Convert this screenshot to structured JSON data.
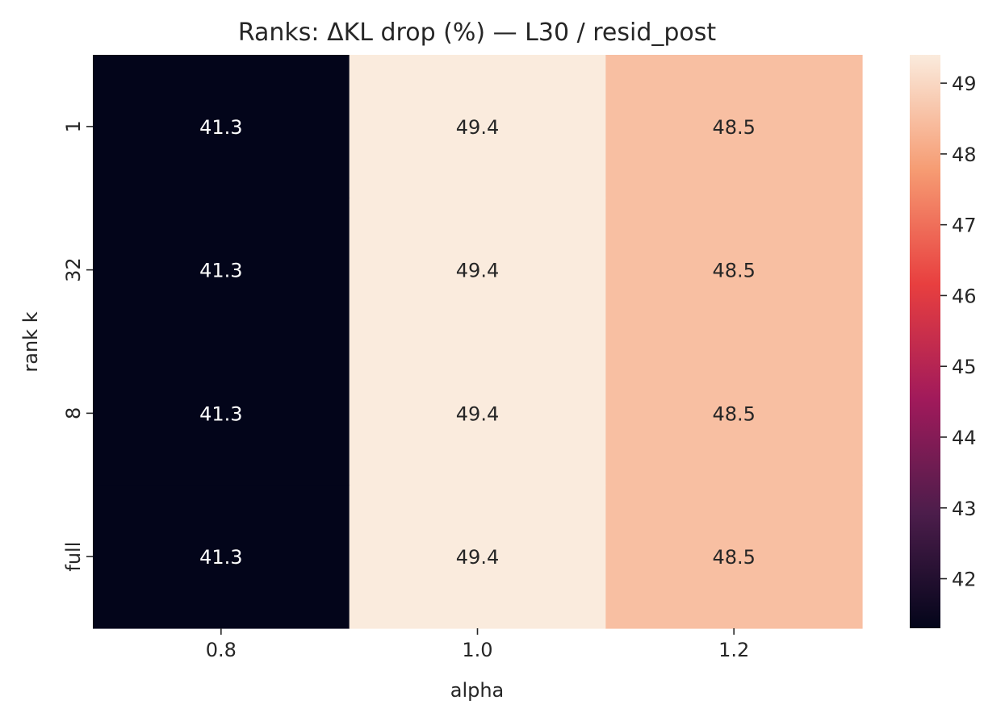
{
  "chart_data": {
    "type": "heatmap",
    "title": "Ranks: ΔKL drop (%) — L30 / resid_post",
    "xlabel": "alpha",
    "ylabel": "rank k",
    "x_categories": [
      "0.8",
      "1.0",
      "1.2"
    ],
    "y_categories": [
      "1",
      "32",
      "8",
      "full"
    ],
    "values": [
      [
        41.3,
        49.4,
        48.5
      ],
      [
        41.3,
        49.4,
        48.5
      ],
      [
        41.3,
        49.4,
        48.5
      ],
      [
        41.3,
        49.4,
        48.5
      ]
    ],
    "colorbar": {
      "range": [
        41.3,
        49.4
      ],
      "ticks": [
        42,
        43,
        44,
        45,
        46,
        47,
        48,
        49
      ],
      "colormap": [
        "#03051a",
        "#4c1d4b",
        "#a11a5b",
        "#e83f3f",
        "#f69c73",
        "#faebdd"
      ]
    },
    "cell_text_color_dark_bg": "#ffffff",
    "cell_text_color_light_bg": "#262626"
  }
}
